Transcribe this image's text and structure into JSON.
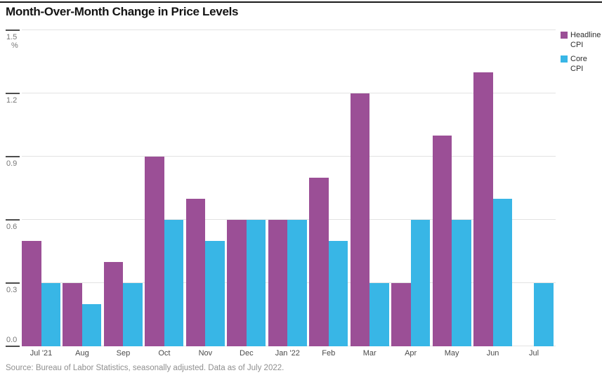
{
  "title": "Month-Over-Month Change in Price Levels",
  "source_note": "Source: Bureau of Labor Statistics, seasonally adjusted. Data as of July 2022.",
  "y_axis": {
    "unit": "%",
    "ticks": [
      "1.5",
      "1.2",
      "0.9",
      "0.6",
      "0.3",
      "0.0"
    ]
  },
  "colors": {
    "headline_cpi": "#9b4f96",
    "core_cpi": "#38b6e6",
    "gridline": "#e3e3e3",
    "tick": "#4d4d4d"
  },
  "chart_data": {
    "type": "bar",
    "title": "Month-Over-Month Change in Price Levels",
    "categories": [
      "Jul '21",
      "Aug",
      "Sep",
      "Oct",
      "Nov",
      "Dec",
      "Jan '22",
      "Feb",
      "Mar",
      "Apr",
      "May",
      "Jun",
      "Jul"
    ],
    "series": [
      {
        "name": "Headline CPI",
        "color": "#9b4f96",
        "values": [
          0.5,
          0.3,
          0.4,
          0.9,
          0.7,
          0.6,
          0.6,
          0.8,
          1.2,
          0.3,
          1.0,
          1.3,
          0.0
        ]
      },
      {
        "name": "Core CPI",
        "color": "#38b6e6",
        "values": [
          0.3,
          0.2,
          0.3,
          0.6,
          0.5,
          0.6,
          0.6,
          0.5,
          0.3,
          0.6,
          0.6,
          0.7,
          0.3
        ]
      }
    ],
    "xlabel": "",
    "ylabel": "%",
    "ylim": [
      0,
      1.5
    ],
    "ytick_step": 0.3,
    "grid": true,
    "legend_position": "top-right"
  }
}
